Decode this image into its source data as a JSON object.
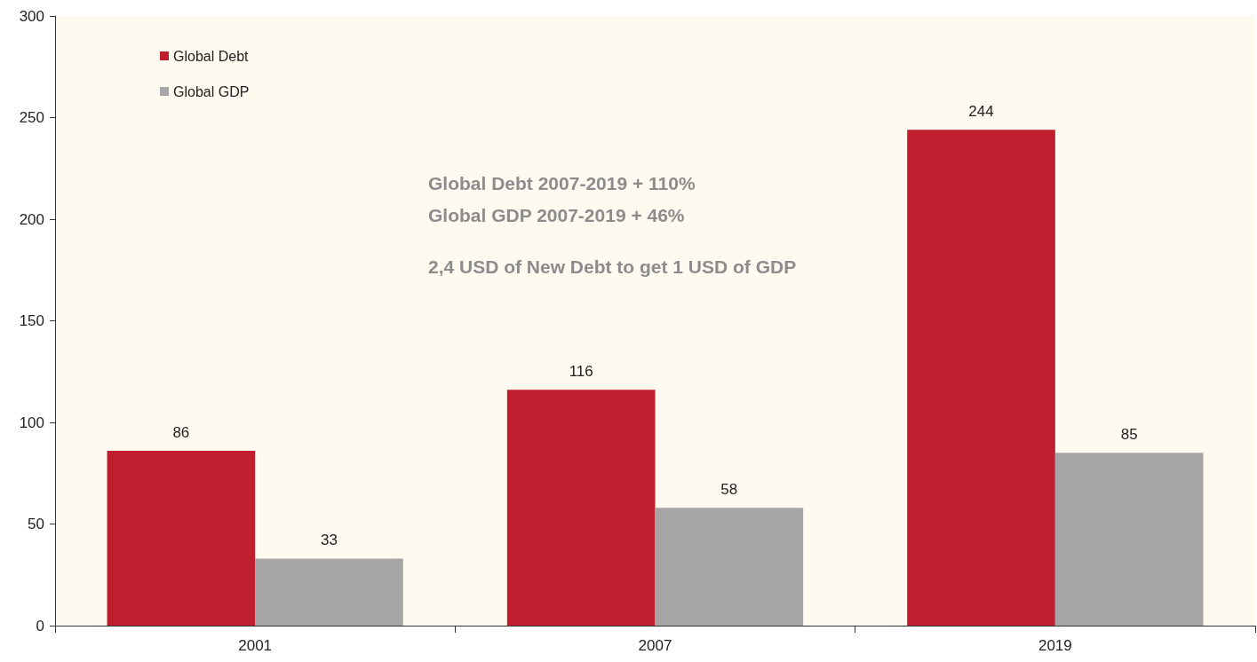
{
  "chart_data": {
    "type": "bar",
    "categories": [
      "2001",
      "2007",
      "2019"
    ],
    "series": [
      {
        "name": "Global Debt",
        "color": "#be1e2d",
        "values": [
          86,
          116,
          244
        ]
      },
      {
        "name": "Global GDP",
        "color": "#a6a6a6",
        "values": [
          33,
          58,
          85
        ]
      }
    ],
    "ylim": [
      0,
      300
    ],
    "yticks": [
      0,
      50,
      100,
      150,
      200,
      250,
      300
    ],
    "grid": false,
    "legend": "top left",
    "data_labels": true,
    "annotations": [
      "Global Debt 2007-2019 + 110%",
      "Global GDP 2007-2019 + 46%",
      "2,4 USD of New Debt to get 1 USD of GDP"
    ]
  }
}
